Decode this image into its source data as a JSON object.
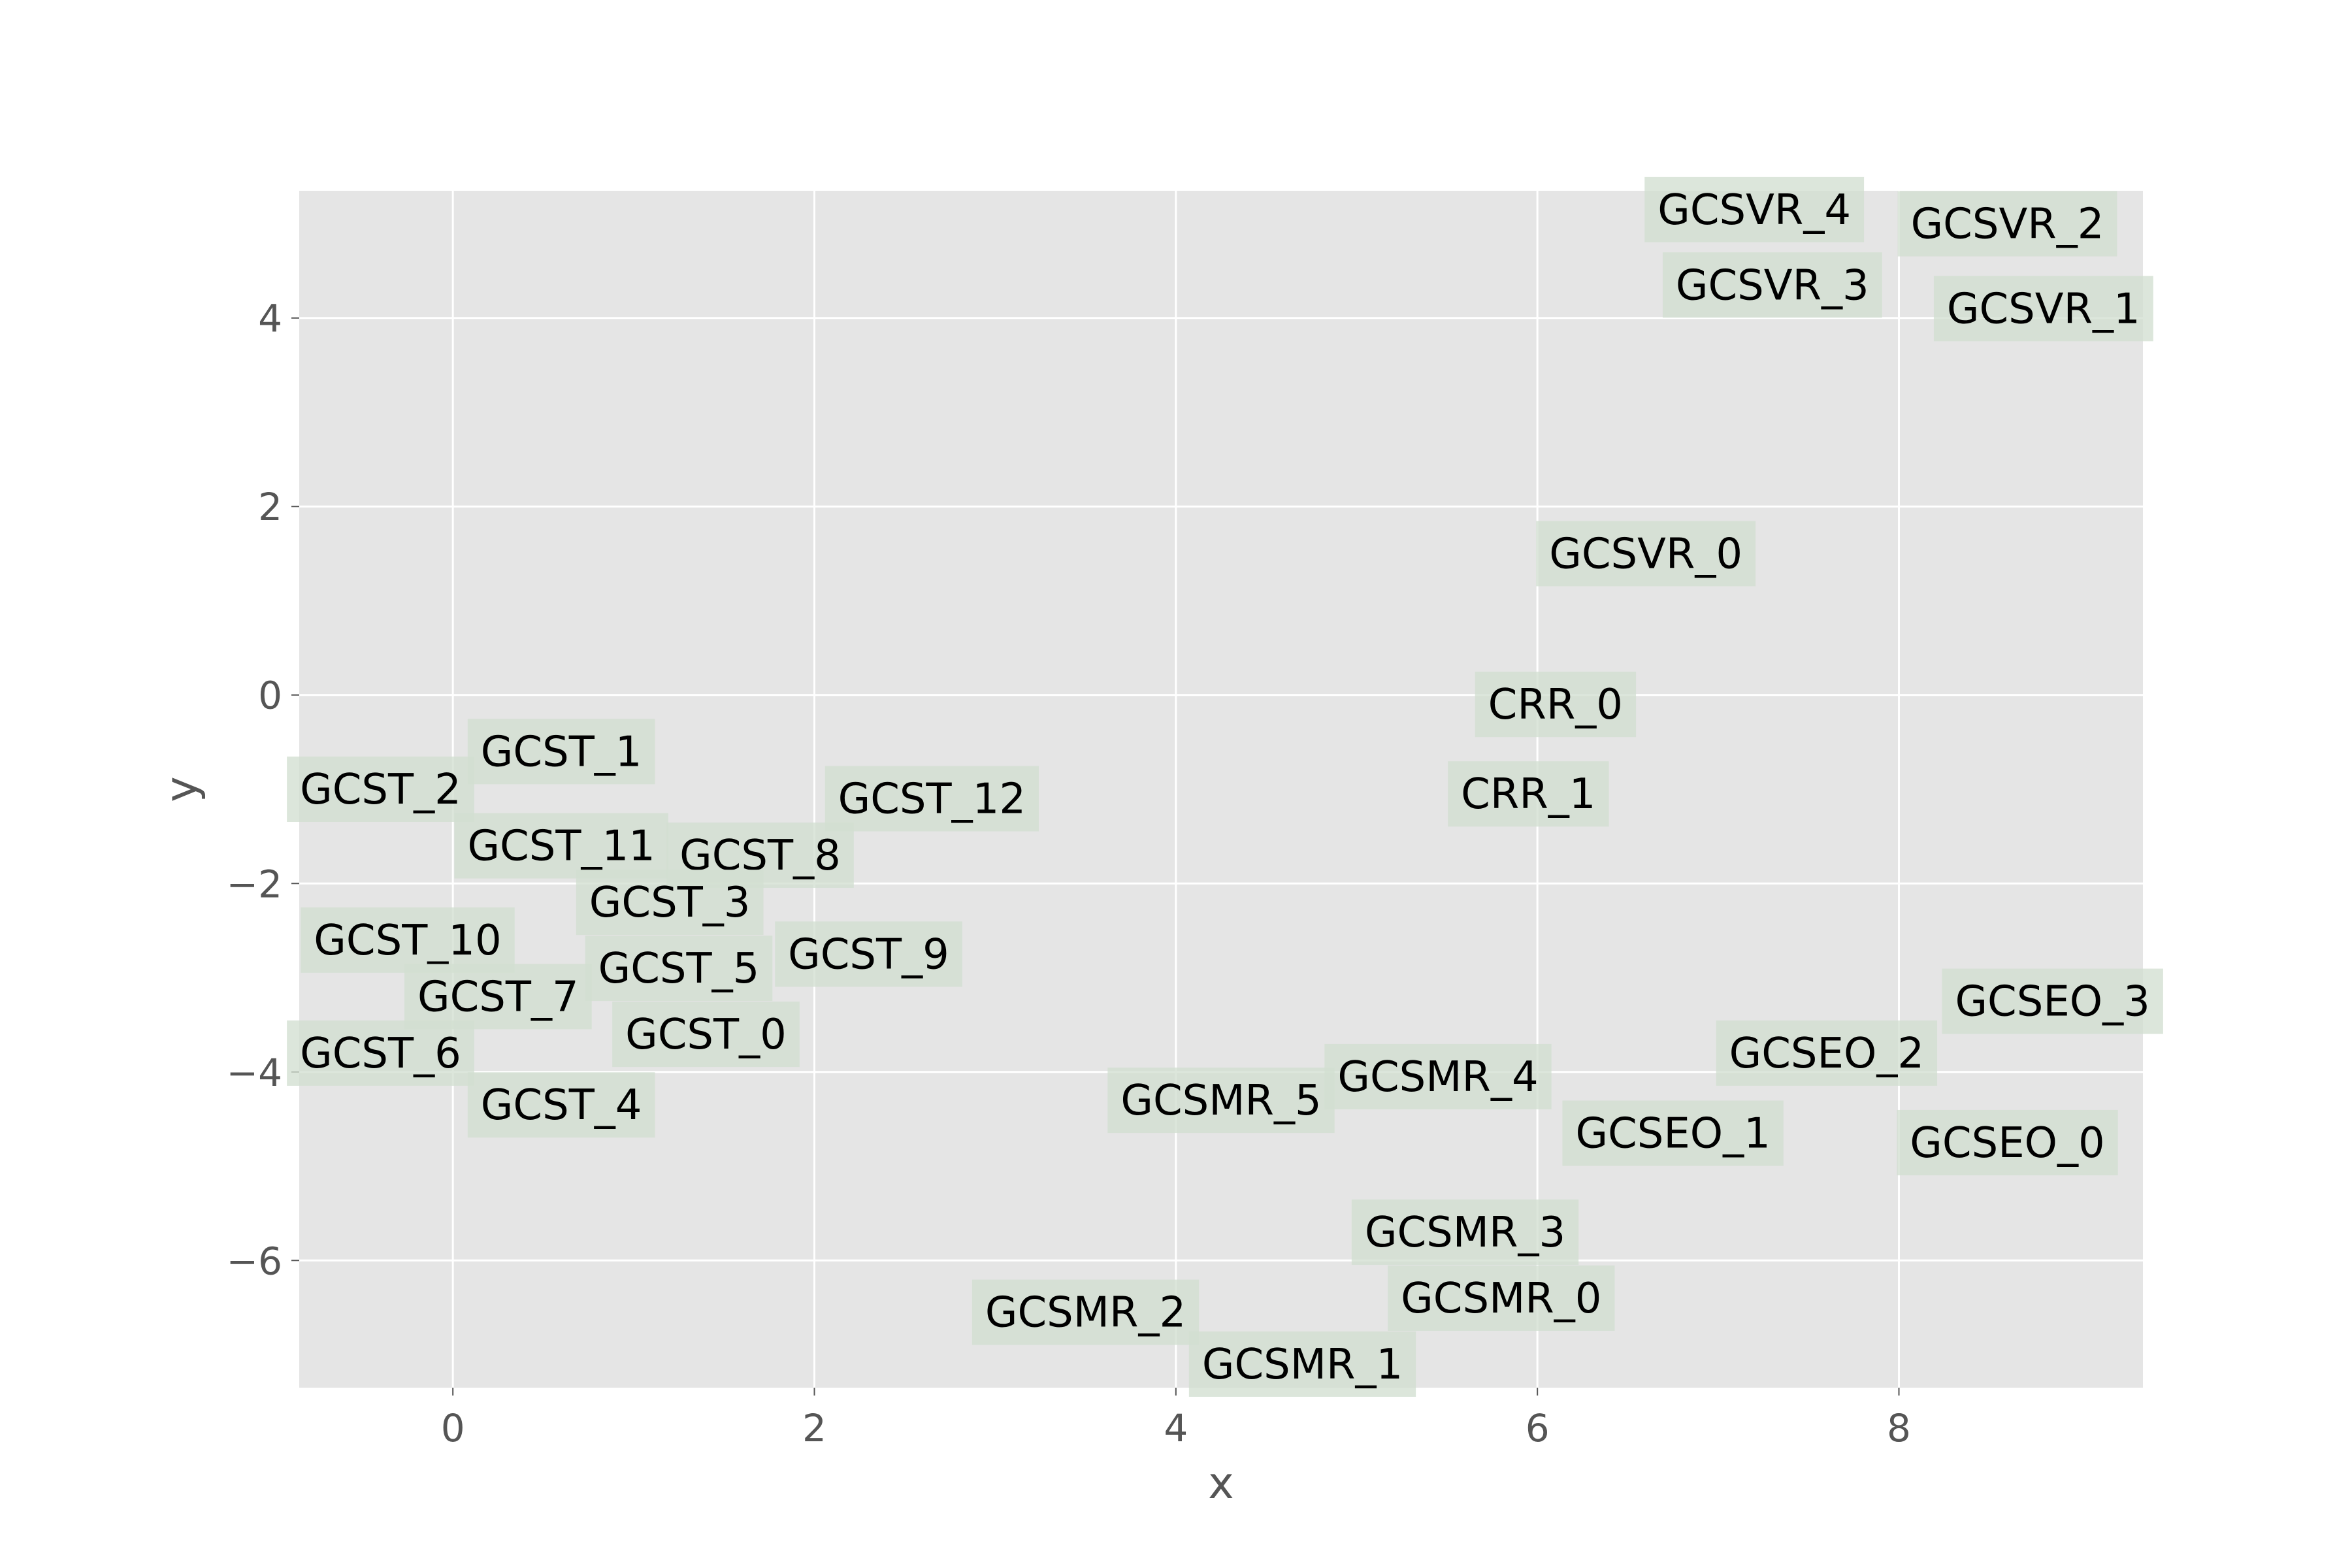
{
  "chart_data": {
    "type": "scatter",
    "title": "",
    "xlabel": "x",
    "ylabel": "y",
    "xlim": [
      -0.85,
      9.35
    ],
    "ylim": [
      -7.35,
      5.35
    ],
    "xticks": [
      0,
      2,
      4,
      6,
      8
    ],
    "yticks": [
      4,
      2,
      0,
      -2,
      -4,
      -6
    ],
    "xtick_labels": [
      "0",
      "2",
      "4",
      "6",
      "8"
    ],
    "ytick_labels": [
      "4",
      "2",
      "0",
      "−2",
      "−4",
      "−6"
    ],
    "grid": true,
    "point_label_color": "#d2dfd1",
    "points": [
      {
        "label": "GCSVR_4",
        "x": 7.2,
        "y": 5.15
      },
      {
        "label": "GCSVR_2",
        "x": 8.6,
        "y": 5.0
      },
      {
        "label": "GCSVR_3",
        "x": 7.3,
        "y": 4.35
      },
      {
        "label": "GCSVR_1",
        "x": 8.8,
        "y": 4.1
      },
      {
        "label": "GCSVR_0",
        "x": 6.6,
        "y": 1.5
      },
      {
        "label": "CRR_0",
        "x": 6.1,
        "y": -0.1
      },
      {
        "label": "CRR_1",
        "x": 5.95,
        "y": -1.05
      },
      {
        "label": "GCST_1",
        "x": 0.6,
        "y": -0.6
      },
      {
        "label": "GCST_2",
        "x": -0.4,
        "y": -1.0
      },
      {
        "label": "GCST_12",
        "x": 2.65,
        "y": -1.1
      },
      {
        "label": "GCST_11",
        "x": 0.6,
        "y": -1.6
      },
      {
        "label": "GCST_8",
        "x": 1.7,
        "y": -1.7
      },
      {
        "label": "GCST_3",
        "x": 1.2,
        "y": -2.2
      },
      {
        "label": "GCST_10",
        "x": -0.25,
        "y": -2.6
      },
      {
        "label": "GCST_9",
        "x": 2.3,
        "y": -2.75
      },
      {
        "label": "GCST_5",
        "x": 1.25,
        "y": -2.9
      },
      {
        "label": "GCST_7",
        "x": 0.25,
        "y": -3.2
      },
      {
        "label": "GCST_0",
        "x": 1.4,
        "y": -3.6
      },
      {
        "label": "GCST_6",
        "x": -0.4,
        "y": -3.8
      },
      {
        "label": "GCST_4",
        "x": 0.6,
        "y": -4.35
      },
      {
        "label": "GCSEO_3",
        "x": 8.85,
        "y": -3.25
      },
      {
        "label": "GCSEO_2",
        "x": 7.6,
        "y": -3.8
      },
      {
        "label": "GCSMR_4",
        "x": 5.45,
        "y": -4.05
      },
      {
        "label": "GCSMR_5",
        "x": 4.25,
        "y": -4.3
      },
      {
        "label": "GCSEO_1",
        "x": 6.75,
        "y": -4.65
      },
      {
        "label": "GCSEO_0",
        "x": 8.6,
        "y": -4.75
      },
      {
        "label": "GCSMR_3",
        "x": 5.6,
        "y": -5.7
      },
      {
        "label": "GCSMR_0",
        "x": 5.8,
        "y": -6.4
      },
      {
        "label": "GCSMR_2",
        "x": 3.5,
        "y": -6.55
      },
      {
        "label": "GCSMR_1",
        "x": 4.7,
        "y": -7.1
      }
    ]
  }
}
